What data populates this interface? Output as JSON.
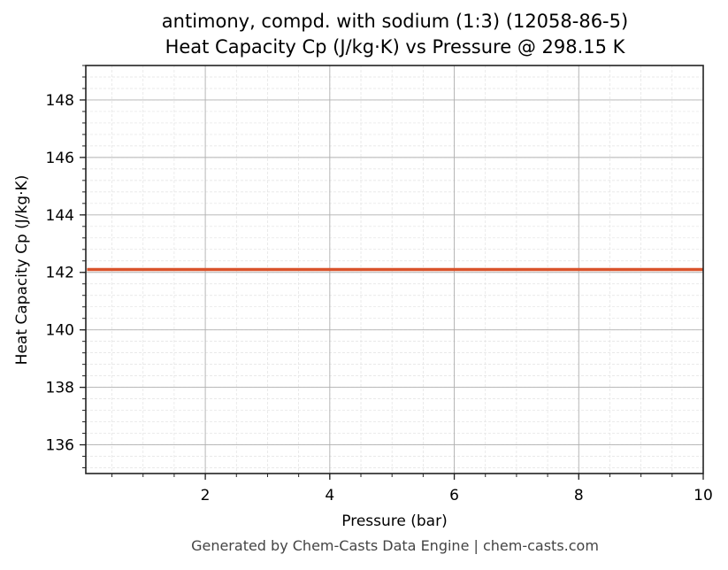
{
  "chart_data": {
    "type": "line",
    "title": "antimony, compd. with sodium (1:3) (12058-86-5)",
    "subtitle": "Heat Capacity Cp (J/kg·K) vs Pressure @ 298.15 K",
    "xlabel": "Pressure (bar)",
    "ylabel": "Heat Capacity Cp (J/kg·K)",
    "xlim": [
      0.08,
      10
    ],
    "ylim": [
      135.0,
      149.2
    ],
    "x_ticks": [
      2,
      4,
      6,
      8,
      10
    ],
    "y_ticks": [
      136,
      138,
      140,
      142,
      144,
      146,
      148
    ],
    "grid": true,
    "minor_grid": true,
    "legend": null,
    "series": [
      {
        "name": "Cp",
        "color": "#d9532b",
        "x": [
          0.1,
          1,
          2,
          3,
          4,
          5,
          6,
          7,
          8,
          9,
          10
        ],
        "values": [
          142.1,
          142.1,
          142.1,
          142.1,
          142.1,
          142.1,
          142.1,
          142.1,
          142.1,
          142.1,
          142.1
        ]
      }
    ]
  },
  "footer": "Generated by Chem-Casts Data Engine | chem-casts.com"
}
